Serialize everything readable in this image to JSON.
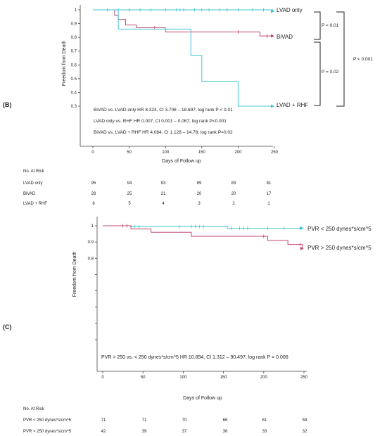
{
  "panels": [
    {
      "label": "(B)",
      "ylabel": "Freedom from Death",
      "xlabel": "Days of Follow up",
      "x_ticks": [
        0,
        50,
        100,
        150,
        200,
        250
      ],
      "y_ticks": [
        0.3,
        0.4,
        0.5,
        0.6,
        0.7,
        0.8,
        0.9,
        1
      ],
      "y_tick_labels": [
        "0.3",
        "0.4",
        "0.5",
        "0.6",
        "0.7",
        "0.8",
        "0.9",
        "1"
      ],
      "annotations": [
        "BiVAD vs. LVAD only HR 8.324, CI 3.706 – 18.697; log rank P < 0.01",
        "LVAD only vs. RHF HR 0.007, CI 0.001 – 0.067; log rank P<0.001",
        "BiVAD vs. LVAD + RHF HR 4.084, CI 1.128 – 14.78; log rank P=0.02"
      ],
      "brackets": [
        "P < 0.01",
        "P = 0.02",
        "P < 0.001"
      ],
      "risk_title": "No. At Risk",
      "risk_table": [
        {
          "name": "LVAD only",
          "values": [
            "95",
            "94",
            "93",
            "89",
            "83",
            "81"
          ]
        },
        {
          "name": "BiVAD",
          "values": [
            "28",
            "25",
            "21",
            "20",
            "20",
            "17"
          ]
        },
        {
          "name": "LVAD + RHF",
          "values": [
            "6",
            "5",
            "4",
            "3",
            "2",
            "1"
          ]
        }
      ]
    },
    {
      "label": "(C)",
      "ylabel": "Freedom from Death",
      "xlabel": "Days of Follow up",
      "x_ticks": [
        0,
        50,
        100,
        150,
        200,
        250
      ],
      "y_ticks": [
        0.3,
        0.4,
        0.5,
        0.6,
        0.7,
        0.8,
        0.9,
        1
      ],
      "y_tick_labels": [
        "",
        "",
        "",
        "",
        "",
        "0.8",
        "0.9",
        "1"
      ],
      "annotations": [
        "PVR > 250 vs. < 250 dynes*s/cm^5 HR 10.894, CI 1.312 – 90.497; log rank P = 0.006"
      ],
      "brackets": [],
      "risk_title": "No. At Risk",
      "risk_table": [
        {
          "name": "PVR < 250 dynes*s/cm^5",
          "values": [
            "71",
            "71",
            "70",
            "66",
            "61",
            "59"
          ]
        },
        {
          "name": "PVR > 250 dynes*s/cm^5",
          "values": [
            "42",
            "39",
            "37",
            "36",
            "33",
            "32"
          ]
        }
      ]
    }
  ],
  "chart_data": [
    {
      "type": "line",
      "step": true,
      "xlabel": "Days of Follow up",
      "ylabel": "Freedom from Death",
      "xlim": [
        0,
        250
      ],
      "ylim": [
        0.3,
        1
      ],
      "series": [
        {
          "name": "LVAD only",
          "color": "#41c5d3",
          "x": [
            0,
            240,
            248
          ],
          "y": [
            1,
            1,
            0.99
          ],
          "censor_x": [
            20,
            35,
            50,
            65,
            80,
            100,
            115,
            120,
            125,
            140,
            150,
            160,
            175,
            185,
            200,
            220,
            235
          ]
        },
        {
          "name": "BiVAD",
          "color": "#c2466e",
          "x": [
            0,
            30,
            35,
            45,
            60,
            100,
            230,
            248
          ],
          "y": [
            1,
            0.96,
            0.93,
            0.89,
            0.87,
            0.84,
            0.81,
            0.81
          ],
          "censor_x": [
            85,
            200,
            240
          ]
        },
        {
          "name": "LVAD + RHF",
          "color": "#41c5d3",
          "x": [
            0,
            35,
            135,
            150,
            200,
            248
          ],
          "y": [
            1,
            0.86,
            0.67,
            0.48,
            0.3,
            0.3
          ],
          "censor_x": [
            100
          ]
        }
      ]
    },
    {
      "type": "line",
      "step": true,
      "xlabel": "Days of Follow up",
      "ylabel": "Freedom from Death",
      "xlim": [
        0,
        250
      ],
      "ylim": [
        0.3,
        1
      ],
      "series": [
        {
          "name": "PVR < 250 dynes*s/cm^5",
          "color": "#41c5d3",
          "x": [
            0,
            35,
            155,
            248
          ],
          "y": [
            1,
            0.995,
            0.985,
            0.985
          ],
          "censor_x": [
            30,
            40,
            45,
            95,
            110,
            115,
            120,
            125,
            160,
            170,
            175,
            180,
            205,
            225,
            245
          ]
        },
        {
          "name": "PVR > 250 dynes*s/cm^5",
          "color": "#c2466e",
          "x": [
            0,
            35,
            60,
            110,
            205,
            230,
            248
          ],
          "y": [
            1,
            0.98,
            0.96,
            0.935,
            0.91,
            0.885,
            0.86
          ],
          "censor_x": [
            25,
            30,
            200,
            245
          ]
        }
      ]
    }
  ]
}
